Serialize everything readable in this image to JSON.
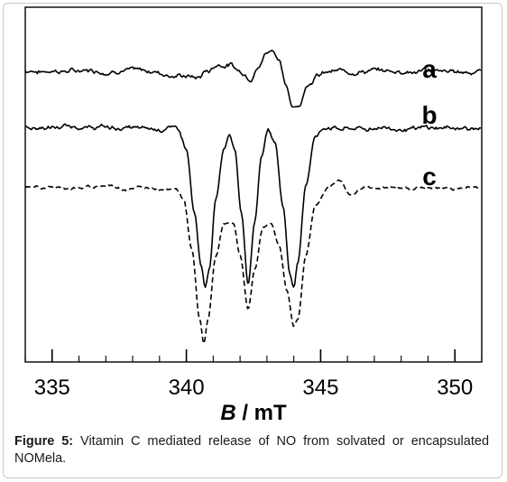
{
  "chart_data": {
    "type": "line",
    "title": "",
    "xlabel": {
      "symbol": "B",
      "rest": " / mT"
    },
    "ylabel": "",
    "xlim": [
      334,
      351
    ],
    "xticks": [
      335,
      340,
      345,
      350
    ],
    "xtick_labels": [
      "335",
      "340",
      "345",
      "350"
    ],
    "minor_tick_step": 1,
    "grid": false,
    "series": [
      {
        "name": "a",
        "style": "solid",
        "baseline": 0.82,
        "noise": 0.012,
        "points": [
          [
            334,
            0.82
          ],
          [
            338.5,
            0.82
          ],
          [
            339.6,
            0.81
          ],
          [
            340.0,
            0.805
          ],
          [
            340.4,
            0.8
          ],
          [
            340.8,
            0.82
          ],
          [
            341.2,
            0.84
          ],
          [
            341.6,
            0.84
          ],
          [
            342.0,
            0.82
          ],
          [
            342.4,
            0.8
          ],
          [
            342.7,
            0.83
          ],
          [
            342.95,
            0.87
          ],
          [
            343.2,
            0.88
          ],
          [
            343.45,
            0.85
          ],
          [
            343.7,
            0.78
          ],
          [
            343.95,
            0.72
          ],
          [
            344.2,
            0.72
          ],
          [
            344.5,
            0.78
          ],
          [
            344.9,
            0.81
          ],
          [
            345.4,
            0.82
          ],
          [
            351,
            0.82
          ]
        ]
      },
      {
        "name": "b",
        "style": "solid",
        "baseline": 0.66,
        "noise": 0.012,
        "points": [
          [
            334,
            0.66
          ],
          [
            339.7,
            0.66
          ],
          [
            340.0,
            0.6
          ],
          [
            340.3,
            0.42
          ],
          [
            340.55,
            0.27
          ],
          [
            340.7,
            0.21
          ],
          [
            340.85,
            0.26
          ],
          [
            341.1,
            0.46
          ],
          [
            341.4,
            0.6
          ],
          [
            341.6,
            0.64
          ],
          [
            341.8,
            0.6
          ],
          [
            342.05,
            0.42
          ],
          [
            342.3,
            0.22
          ],
          [
            342.55,
            0.4
          ],
          [
            342.8,
            0.58
          ],
          [
            343.05,
            0.66
          ],
          [
            343.3,
            0.62
          ],
          [
            343.6,
            0.44
          ],
          [
            343.85,
            0.25
          ],
          [
            344.0,
            0.21
          ],
          [
            344.15,
            0.28
          ],
          [
            344.45,
            0.5
          ],
          [
            344.8,
            0.64
          ],
          [
            345.2,
            0.66
          ],
          [
            351,
            0.66
          ]
        ]
      },
      {
        "name": "c",
        "style": "dashed",
        "baseline": 0.49,
        "noise": 0.008,
        "points": [
          [
            334,
            0.49
          ],
          [
            336.2,
            0.49
          ],
          [
            337.0,
            0.5
          ],
          [
            337.7,
            0.49
          ],
          [
            339.6,
            0.49
          ],
          [
            339.9,
            0.46
          ],
          [
            340.2,
            0.32
          ],
          [
            340.5,
            0.12
          ],
          [
            340.65,
            0.05
          ],
          [
            340.8,
            0.12
          ],
          [
            341.1,
            0.3
          ],
          [
            341.4,
            0.39
          ],
          [
            341.75,
            0.39
          ],
          [
            342.0,
            0.3
          ],
          [
            342.3,
            0.15
          ],
          [
            342.55,
            0.26
          ],
          [
            342.85,
            0.38
          ],
          [
            343.15,
            0.39
          ],
          [
            343.45,
            0.33
          ],
          [
            343.75,
            0.2
          ],
          [
            344.0,
            0.1
          ],
          [
            344.15,
            0.12
          ],
          [
            344.45,
            0.3
          ],
          [
            344.8,
            0.44
          ],
          [
            345.3,
            0.49
          ],
          [
            345.7,
            0.51
          ],
          [
            346.1,
            0.47
          ],
          [
            346.6,
            0.49
          ],
          [
            351,
            0.49
          ]
        ]
      }
    ]
  },
  "caption": {
    "label": "Figure 5:",
    "text": " Vitamin C mediated release of NO from solvated or encapsulated NOMela."
  }
}
